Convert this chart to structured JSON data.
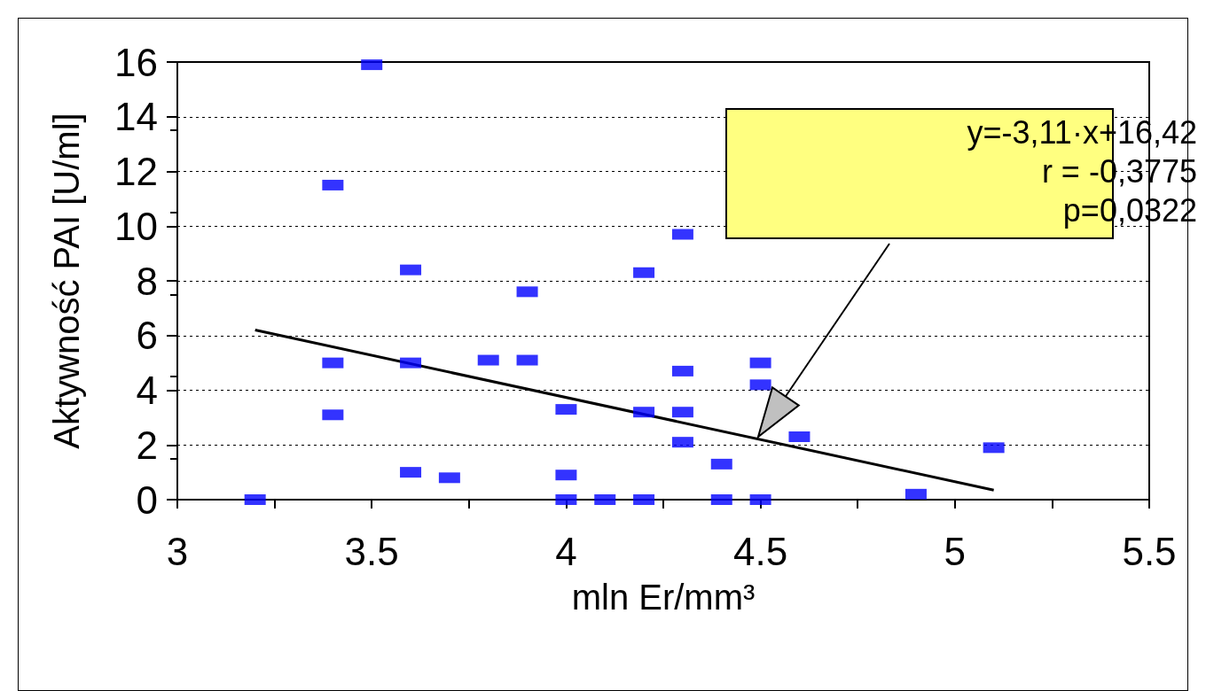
{
  "chart_data": {
    "type": "scatter",
    "xlabel": "mln Er/mm³",
    "ylabel": "Aktywność PAI [U/ml]",
    "xlim": [
      3,
      5.5
    ],
    "xticks": [
      3,
      3.5,
      4,
      4.5,
      5,
      5.5
    ],
    "ylim": [
      0,
      16
    ],
    "yticks": [
      0,
      2,
      4,
      6,
      8,
      10,
      12,
      14,
      16
    ],
    "grid": "y",
    "marker": "square",
    "series": [
      {
        "color": "#0000ff",
        "x": [
          3.2,
          3.4,
          3.4,
          3.4,
          3.5,
          3.6,
          3.6,
          3.6,
          3.7,
          3.8,
          3.9,
          3.9,
          4.0,
          4.0,
          4.0,
          4.1,
          4.2,
          4.2,
          4.2,
          4.3,
          4.3,
          4.3,
          4.3,
          4.4,
          4.4,
          4.5,
          4.5,
          4.5,
          4.6,
          4.9,
          5.1
        ],
        "values": [
          0,
          3.1,
          5.0,
          11.5,
          15.9,
          8.4,
          5.0,
          1.0,
          0.8,
          5.1,
          7.6,
          5.1,
          3.3,
          0.9,
          0,
          0,
          8.3,
          3.2,
          0,
          9.7,
          4.7,
          3.2,
          2.1,
          1.3,
          0,
          5.0,
          4.2,
          0,
          2.3,
          0.2,
          1.9
        ]
      },
      {
        "type": "line",
        "color": "#000000",
        "marker": "none",
        "line_style": "solid",
        "x": [
          3.2,
          5.1
        ],
        "values": [
          6.2,
          0.35
        ]
      }
    ],
    "annotations": [
      "y=-3,11·x+16,42\nr = -0,3775\np=0,0322"
    ]
  }
}
